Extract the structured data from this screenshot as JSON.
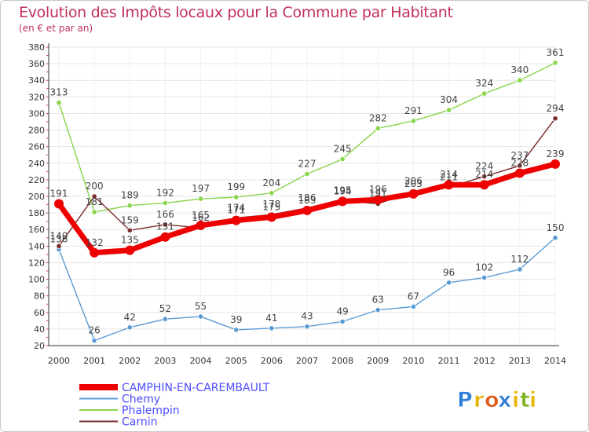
{
  "title": "Evolution des Impôts locaux pour la Commune par Habitant",
  "subtitle": "(en € et par an)",
  "brand": {
    "name": "Proxiti",
    "letters": [
      "P",
      "r",
      "o",
      "x",
      "i",
      "t",
      "i"
    ],
    "letter_colors": [
      "#2f7fd6",
      "#e8b400",
      "#e05a1a",
      "#2f7fd6",
      "#e8b400",
      "#7fb21f",
      "#e8b400"
    ]
  },
  "chart_data": {
    "type": "line",
    "title": "Evolution des Impôts locaux pour la Commune par Habitant",
    "subtitle": "(en € et par an)",
    "xlabel": "",
    "ylabel": "",
    "x": [
      "2000",
      "2001",
      "2002",
      "2003",
      "2004",
      "2005",
      "2006",
      "2007",
      "2008",
      "2009",
      "2010",
      "2011",
      "2012",
      "2013",
      "2014"
    ],
    "ylim": [
      20,
      380
    ],
    "yticks": [
      "20",
      "40",
      "60",
      "80",
      "100",
      "120",
      "140",
      "160",
      "180",
      "200",
      "220",
      "240",
      "260",
      "280",
      "300",
      "320",
      "340",
      "360",
      "380"
    ],
    "legend_position": "bottom-left",
    "series": [
      {
        "name": "Phalempin",
        "color": "#88d44a",
        "values": [
          313,
          181,
          189,
          192,
          197,
          199,
          204,
          227,
          245,
          282,
          291,
          304,
          324,
          340,
          361
        ]
      },
      {
        "name": "Chemy",
        "color": "#5b9bd5",
        "values": [
          136,
          26,
          42,
          52,
          55,
          39,
          41,
          43,
          49,
          63,
          67,
          96,
          102,
          112,
          150
        ]
      },
      {
        "name": "Carnin",
        "color": "#7a2a2a",
        "values": [
          140,
          200,
          159,
          166,
          162,
          174,
          178,
          186,
          195,
          191,
          206,
          211,
          224,
          237,
          294
        ]
      },
      {
        "name": "CAMPHIN-EN-CAREMBAULT",
        "color": "#ee0000",
        "values": [
          191,
          132,
          135,
          151,
          165,
          171,
          175,
          183,
          194,
          196,
          203,
          214,
          214,
          228,
          239
        ]
      }
    ],
    "legend_order": [
      "CAMPHIN-EN-CAREMBAULT",
      "Chemy",
      "Phalempin",
      "Carnin"
    ]
  }
}
